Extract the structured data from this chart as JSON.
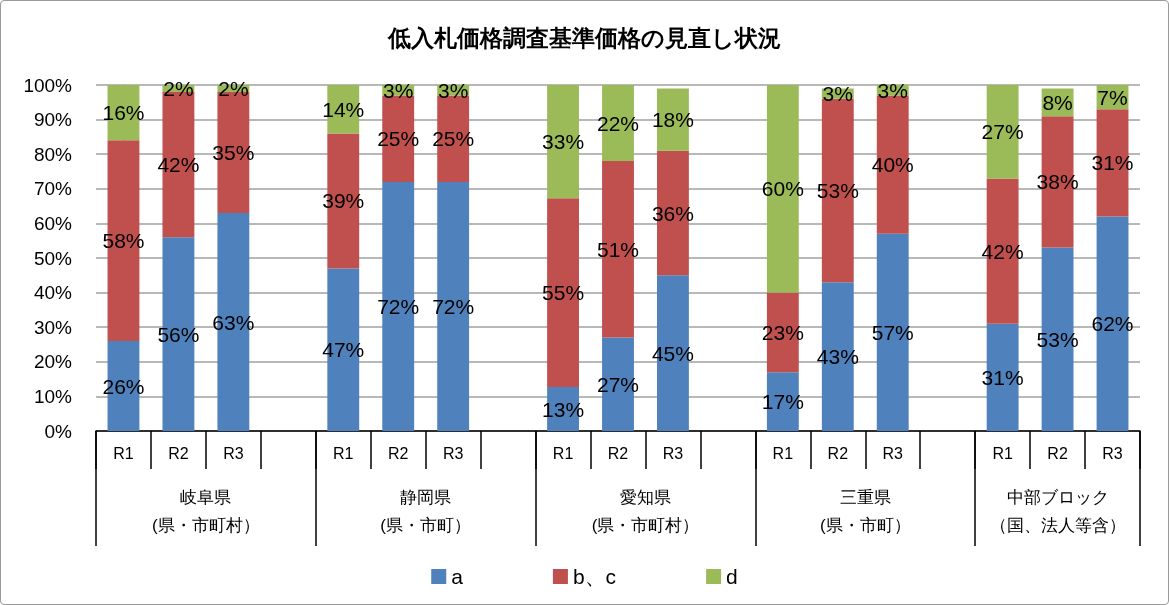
{
  "chart_data": {
    "type": "bar",
    "title": "低入札価格調査基準価格の見直し状況",
    "categories": [
      "R1",
      "R2",
      "R3",
      null,
      "R1",
      "R2",
      "R3",
      null,
      "R1",
      "R2",
      "R3",
      null,
      "R1",
      "R2",
      "R3",
      null,
      "R1",
      "R2",
      "R3"
    ],
    "series": [
      {
        "name": "a",
        "color": "#4f81bd",
        "values": [
          26,
          56,
          63,
          null,
          47,
          72,
          72,
          null,
          12.7,
          27,
          45,
          null,
          17,
          43,
          57,
          null,
          31,
          53,
          62
        ],
        "value_labels": [
          "26%",
          "56%",
          "63%",
          null,
          "47%",
          "72%",
          "72%",
          null,
          "13%",
          "27%",
          "45%",
          null,
          "17%",
          "43%",
          "57%",
          null,
          "31%",
          "53%",
          "62%"
        ]
      },
      {
        "name": "b、c",
        "color": "#c0504d",
        "values": [
          58,
          42,
          35,
          null,
          39,
          25,
          25,
          null,
          54.6,
          51,
          36,
          null,
          23,
          53,
          40,
          null,
          42,
          38,
          31
        ],
        "value_labels": [
          "58%",
          "42%",
          "35%",
          null,
          "39%",
          "25%",
          "25%",
          null,
          "55%",
          "51%",
          "36%",
          null,
          "23%",
          "53%",
          "40%",
          null,
          "42%",
          "38%",
          "31%"
        ]
      },
      {
        "name": "d",
        "color": "#9bbb59",
        "values": [
          16,
          2,
          2,
          null,
          14,
          3,
          3,
          null,
          32.7,
          22,
          18,
          null,
          60,
          3,
          3,
          null,
          27,
          8,
          7
        ],
        "value_labels": [
          "16%",
          "2%",
          "2%",
          null,
          "14%",
          "3%",
          "3%",
          null,
          "33%",
          "22%",
          "18%",
          null,
          "60%",
          "3%",
          "3%",
          null,
          "27%",
          "8%",
          "7%"
        ]
      }
    ],
    "stacked": true,
    "ylim": [
      0,
      100
    ],
    "yticks": [
      {
        "value": 0,
        "label": "0%"
      },
      {
        "value": 10,
        "label": "10%"
      },
      {
        "value": 20,
        "label": "20%"
      },
      {
        "value": 30,
        "label": "30%"
      },
      {
        "value": 40,
        "label": "40%"
      },
      {
        "value": 50,
        "label": "50%"
      },
      {
        "value": 60,
        "label": "60%"
      },
      {
        "value": 70,
        "label": "70%"
      },
      {
        "value": 80,
        "label": "80%"
      },
      {
        "value": 90,
        "label": "90%"
      },
      {
        "value": 100,
        "label": "100%"
      }
    ],
    "grid": "y",
    "legend": "bottom",
    "annotations": [
      "岐阜県",
      "(県・市町村）",
      "静岡県",
      "(県・市町）",
      "愛知県",
      "(県・市町村）",
      "三重県",
      "(県・市町）",
      "中部ブロック",
      "（国、法人等含）"
    ]
  }
}
